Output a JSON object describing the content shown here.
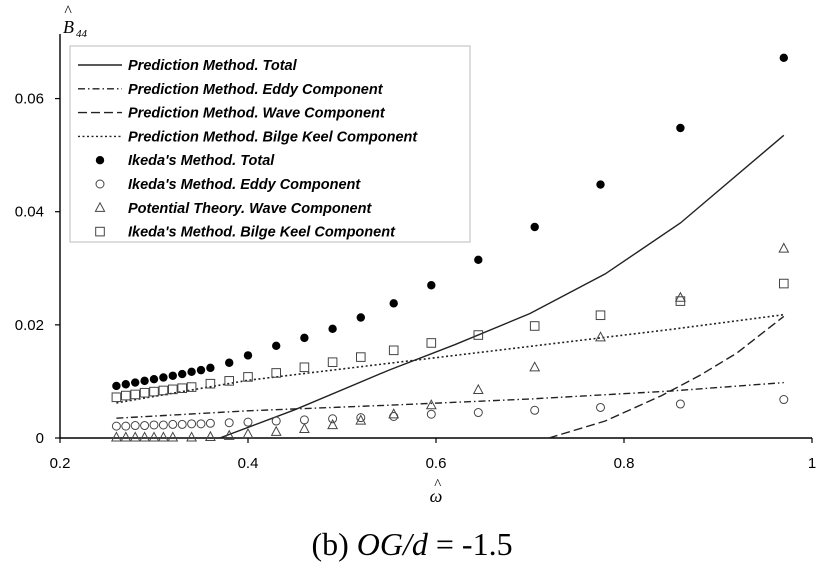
{
  "caption": {
    "prefix": "(b) ",
    "variable": "OG/d",
    "suffix": " = -1.5"
  },
  "chart_data": {
    "type": "scatter",
    "xlabel": "ω̂",
    "ylabel": "B̂44",
    "xlim": [
      0.2,
      1.0
    ],
    "ylim": [
      0,
      0.07
    ],
    "x_ticks": [
      "0.2",
      "0.4",
      "0.6",
      "0.8",
      "1"
    ],
    "y_ticks": [
      "0",
      "0.02",
      "0.04",
      "0.06"
    ],
    "legend_position": "top-left",
    "series": [
      {
        "name": "Prediction Method. Total",
        "kind": "line",
        "dash": "solid",
        "x": [
          0.37,
          0.45,
          0.55,
          0.62,
          0.7,
          0.78,
          0.86,
          0.97
        ],
        "y": [
          0.0,
          0.005,
          0.012,
          0.0165,
          0.022,
          0.029,
          0.038,
          0.0535
        ]
      },
      {
        "name": "Prediction Method. Eddy Component",
        "kind": "line",
        "dash": "dashdot",
        "x": [
          0.26,
          0.4,
          0.55,
          0.7,
          0.85,
          0.97
        ],
        "y": [
          0.0035,
          0.0048,
          0.0058,
          0.0069,
          0.0083,
          0.0098
        ]
      },
      {
        "name": "Prediction Method. Wave Component",
        "kind": "line",
        "dash": "dashed",
        "x": [
          0.72,
          0.78,
          0.84,
          0.88,
          0.92,
          0.97
        ],
        "y": [
          0.0,
          0.003,
          0.0075,
          0.011,
          0.015,
          0.0215
        ]
      },
      {
        "name": "Prediction Method. Bilge Keel Component",
        "kind": "line",
        "dash": "dotted",
        "x": [
          0.26,
          0.4,
          0.55,
          0.7,
          0.85,
          0.97
        ],
        "y": [
          0.0062,
          0.0102,
          0.0132,
          0.0162,
          0.0192,
          0.0218
        ]
      },
      {
        "name": "Ikeda's Method. Total",
        "kind": "marker",
        "marker": "filled-circle",
        "x": [
          0.26,
          0.27,
          0.28,
          0.29,
          0.3,
          0.31,
          0.32,
          0.33,
          0.34,
          0.35,
          0.36,
          0.38,
          0.4,
          0.43,
          0.46,
          0.49,
          0.52,
          0.555,
          0.595,
          0.645,
          0.705,
          0.775,
          0.86,
          0.97
        ],
        "y": [
          0.0092,
          0.0095,
          0.0098,
          0.0101,
          0.0104,
          0.0107,
          0.011,
          0.0113,
          0.0117,
          0.012,
          0.0124,
          0.0133,
          0.0146,
          0.0163,
          0.0177,
          0.0193,
          0.0213,
          0.0238,
          0.027,
          0.0315,
          0.0373,
          0.0448,
          0.0548,
          0.0672
        ]
      },
      {
        "name": "Ikeda's Method. Eddy Component",
        "kind": "marker",
        "marker": "open-circle",
        "x": [
          0.26,
          0.27,
          0.28,
          0.29,
          0.3,
          0.31,
          0.32,
          0.33,
          0.34,
          0.35,
          0.36,
          0.38,
          0.4,
          0.43,
          0.46,
          0.49,
          0.52,
          0.555,
          0.595,
          0.645,
          0.705,
          0.775,
          0.86,
          0.97
        ],
        "y": [
          0.0021,
          0.0021,
          0.0022,
          0.0022,
          0.0023,
          0.0023,
          0.0024,
          0.0024,
          0.0025,
          0.0025,
          0.0026,
          0.0027,
          0.0028,
          0.003,
          0.0032,
          0.0034,
          0.0036,
          0.0038,
          0.0042,
          0.0045,
          0.0049,
          0.0054,
          0.006,
          0.0068
        ]
      },
      {
        "name": "Potential Theory. Wave Component",
        "kind": "marker",
        "marker": "open-triangle",
        "x": [
          0.26,
          0.27,
          0.28,
          0.29,
          0.3,
          0.31,
          0.32,
          0.34,
          0.36,
          0.38,
          0.4,
          0.43,
          0.46,
          0.49,
          0.52,
          0.555,
          0.595,
          0.645,
          0.705,
          0.775,
          0.86,
          0.97
        ],
        "y": [
          0.0001,
          0.0001,
          0.0001,
          0.0001,
          0.0001,
          0.0001,
          0.0001,
          0.0001,
          0.0002,
          0.0004,
          0.0007,
          0.0011,
          0.0016,
          0.0023,
          0.0031,
          0.0042,
          0.0058,
          0.0085,
          0.0125,
          0.0178,
          0.0248,
          0.0335
        ]
      },
      {
        "name": "Ikeda's Method. Bilge Keel Component",
        "kind": "marker",
        "marker": "open-square",
        "x": [
          0.26,
          0.27,
          0.28,
          0.29,
          0.3,
          0.31,
          0.32,
          0.33,
          0.34,
          0.36,
          0.38,
          0.4,
          0.43,
          0.46,
          0.49,
          0.52,
          0.555,
          0.595,
          0.645,
          0.705,
          0.775,
          0.86,
          0.97
        ],
        "y": [
          0.0072,
          0.0075,
          0.0077,
          0.008,
          0.0082,
          0.0084,
          0.0086,
          0.0088,
          0.009,
          0.0096,
          0.0101,
          0.0108,
          0.0115,
          0.0125,
          0.0134,
          0.0143,
          0.0155,
          0.0168,
          0.0182,
          0.0198,
          0.0217,
          0.0242,
          0.0273
        ]
      }
    ]
  }
}
